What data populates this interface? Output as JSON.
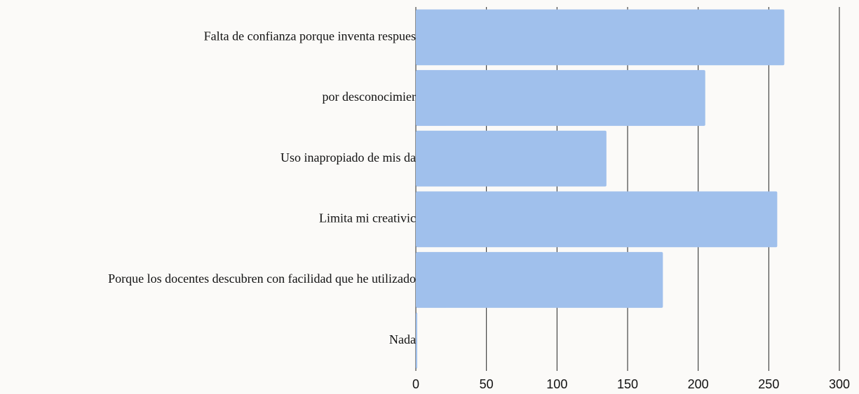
{
  "chart_data": {
    "type": "bar",
    "orientation": "horizontal",
    "categories": [
      "Falta de confianza porque inventa respues",
      "por desconocimier",
      "Uso inapropiado de mis da",
      "Limita mi creativic",
      "Porque los docentes descubren con facilidad que he utilizado",
      "Nada"
    ],
    "values": [
      261,
      205,
      135,
      256,
      175,
      1
    ],
    "color": "#a0c0ec",
    "xlim": [
      0,
      300
    ],
    "xticks": [
      0,
      50,
      100,
      150,
      200,
      250,
      300
    ],
    "grid": true
  }
}
